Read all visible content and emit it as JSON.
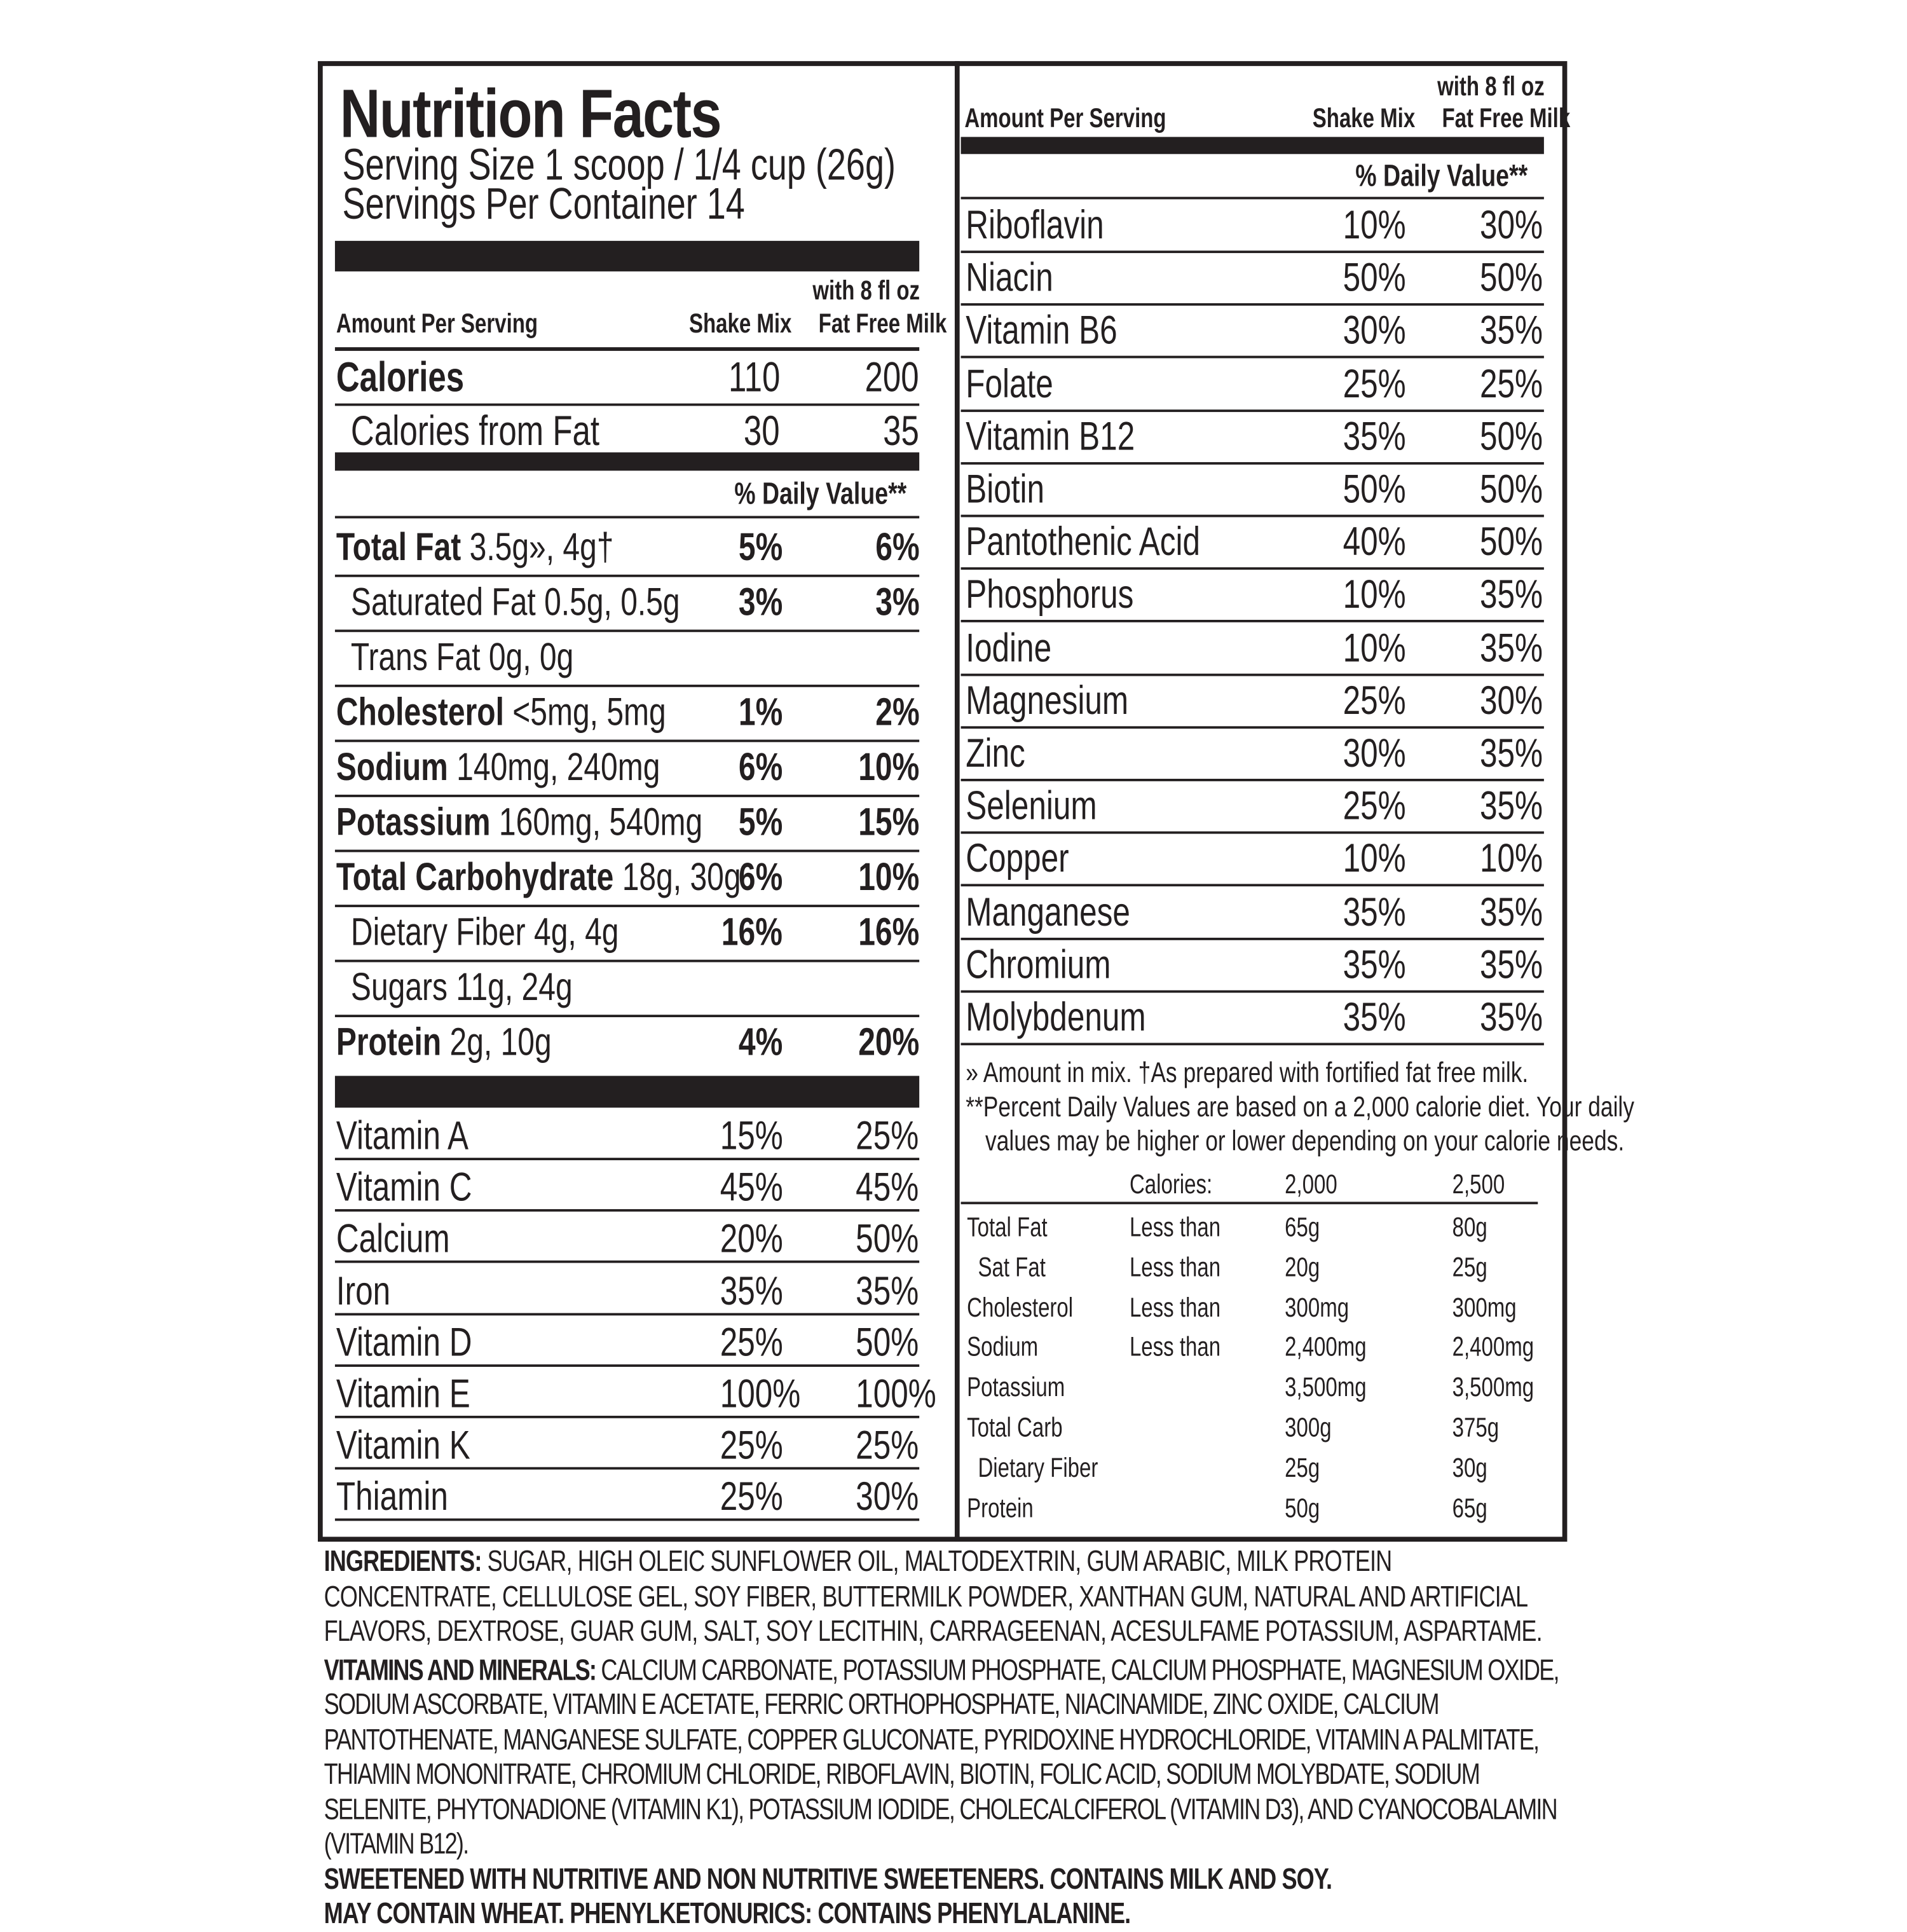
{
  "title": "Nutrition Facts",
  "serving_size": "Serving Size 1 scoop / 1/4 cup (26g)",
  "servings_per_container": "Servings Per Container 14",
  "columns": {
    "amount_per_serving": "Amount Per Serving",
    "shake_mix": "Shake Mix",
    "milk_line1": "with 8 fl oz",
    "milk_line2": "Fat Free Milk"
  },
  "calories": {
    "label": "Calories",
    "mix": "110",
    "milk": "200"
  },
  "calories_from_fat": {
    "label": "Calories from Fat",
    "mix": "30",
    "milk": "35"
  },
  "daily_value_header": "% Daily Value**",
  "nutrients": [
    {
      "name": "Total Fat",
      "detail": "3.5g», 4g†",
      "bold": true,
      "indent": false,
      "mix": "5%",
      "milk": "6%"
    },
    {
      "name": "Saturated Fat",
      "detail": "0.5g, 0.5g",
      "bold": false,
      "indent": true,
      "mix": "3%",
      "milk": "3%"
    },
    {
      "name": "Trans Fat",
      "detail": "0g, 0g",
      "bold": false,
      "indent": true,
      "mix": "",
      "milk": ""
    },
    {
      "name": "Cholesterol",
      "detail": "<5mg, 5mg",
      "bold": true,
      "indent": false,
      "mix": "1%",
      "milk": "2%"
    },
    {
      "name": "Sodium",
      "detail": "140mg, 240mg",
      "bold": true,
      "indent": false,
      "mix": "6%",
      "milk": "10%"
    },
    {
      "name": "Potassium",
      "detail": "160mg, 540mg",
      "bold": true,
      "indent": false,
      "mix": "5%",
      "milk": "15%"
    },
    {
      "name": "Total Carbohydrate",
      "detail": "18g, 30g",
      "bold": true,
      "indent": false,
      "mix": "6%",
      "milk": "10%"
    },
    {
      "name": "Dietary Fiber",
      "detail": "4g, 4g",
      "bold": false,
      "indent": true,
      "mix": "16%",
      "milk": "16%"
    },
    {
      "name": "Sugars",
      "detail": "11g, 24g",
      "bold": false,
      "indent": true,
      "mix": "",
      "milk": ""
    },
    {
      "name": "Protein",
      "detail": "2g, 10g",
      "bold": true,
      "indent": false,
      "mix": "4%",
      "milk": "20%"
    }
  ],
  "vitamins_left": [
    {
      "name": "Vitamin A",
      "mix": "15%",
      "milk": "25%"
    },
    {
      "name": "Vitamin C",
      "mix": "45%",
      "milk": "45%"
    },
    {
      "name": "Calcium",
      "mix": "20%",
      "milk": "50%"
    },
    {
      "name": "Iron",
      "mix": "35%",
      "milk": "35%"
    },
    {
      "name": "Vitamin D",
      "mix": "25%",
      "milk": "50%"
    },
    {
      "name": "Vitamin E",
      "mix": "100%",
      "milk": "100%"
    },
    {
      "name": "Vitamin K",
      "mix": "25%",
      "milk": "25%"
    },
    {
      "name": "Thiamin",
      "mix": "25%",
      "milk": "30%"
    }
  ],
  "vitamins_right": [
    {
      "name": "Riboflavin",
      "mix": "10%",
      "milk": "30%"
    },
    {
      "name": "Niacin",
      "mix": "50%",
      "milk": "50%"
    },
    {
      "name": "Vitamin B6",
      "mix": "30%",
      "milk": "35%"
    },
    {
      "name": "Folate",
      "mix": "25%",
      "milk": "25%"
    },
    {
      "name": "Vitamin B12",
      "mix": "35%",
      "milk": "50%"
    },
    {
      "name": "Biotin",
      "mix": "50%",
      "milk": "50%"
    },
    {
      "name": "Pantothenic Acid",
      "mix": "40%",
      "milk": "50%"
    },
    {
      "name": "Phosphorus",
      "mix": "10%",
      "milk": "35%"
    },
    {
      "name": "Iodine",
      "mix": "10%",
      "milk": "35%"
    },
    {
      "name": "Magnesium",
      "mix": "25%",
      "milk": "30%"
    },
    {
      "name": "Zinc",
      "mix": "30%",
      "milk": "35%"
    },
    {
      "name": "Selenium",
      "mix": "25%",
      "milk": "35%"
    },
    {
      "name": "Copper",
      "mix": "10%",
      "milk": "10%"
    },
    {
      "name": "Manganese",
      "mix": "35%",
      "milk": "35%"
    },
    {
      "name": "Chromium",
      "mix": "35%",
      "milk": "35%"
    },
    {
      "name": "Molybdenum",
      "mix": "35%",
      "milk": "35%"
    }
  ],
  "footnotes": {
    "amount_in_mix": "» Amount in mix. †As prepared with fortified fat free milk.",
    "pdv_line1": "**Percent Daily Values are based on a 2,000 calorie diet. Your daily",
    "pdv_line2": "values may be higher or lower depending on your calorie needs."
  },
  "dv_table": {
    "header": {
      "label": "Calories:",
      "c2000": "2,000",
      "c2500": "2,500"
    },
    "rows": [
      {
        "name": "Total Fat",
        "qual": "Less than",
        "c2000": "65g",
        "c2500": "80g",
        "indent": false
      },
      {
        "name": "Sat Fat",
        "qual": "Less than",
        "c2000": "20g",
        "c2500": "25g",
        "indent": true
      },
      {
        "name": "Cholesterol",
        "qual": "Less than",
        "c2000": "300mg",
        "c2500": "300mg",
        "indent": false
      },
      {
        "name": "Sodium",
        "qual": "Less than",
        "c2000": "2,400mg",
        "c2500": "2,400mg",
        "indent": false
      },
      {
        "name": "Potassium",
        "qual": "",
        "c2000": "3,500mg",
        "c2500": "3,500mg",
        "indent": false
      },
      {
        "name": "Total Carb",
        "qual": "",
        "c2000": "300g",
        "c2500": "375g",
        "indent": false
      },
      {
        "name": "Dietary Fiber",
        "qual": "",
        "c2000": "25g",
        "c2500": "30g",
        "indent": true
      },
      {
        "name": "Protein",
        "qual": "",
        "c2000": "50g",
        "c2500": "65g",
        "indent": false
      }
    ]
  },
  "ingredients": {
    "label": "INGREDIENTS:",
    "text": " SUGAR, HIGH OLEIC SUNFLOWER OIL, MALTODEXTRIN, GUM ARABIC, MILK PROTEIN CONCENTRATE, CELLULOSE GEL, SOY FIBER, BUTTERMILK POWDER, XANTHAN GUM, NATURAL AND ARTIFICIAL FLAVORS, DEXTROSE, GUAR GUM, SALT, SOY LECITHIN, CARRAGEENAN, ACESULFAME POTASSIUM, ASPARTAME."
  },
  "vitamins_minerals": {
    "label": "VITAMINS AND MINERALS:",
    "text": " CALCIUM CARBONATE, POTASSIUM PHOSPHATE, CALCIUM PHOSPHATE, MAGNESIUM OXIDE, SODIUM ASCORBATE, VITAMIN E ACETATE, FERRIC ORTHOPHOSPHATE, NIACINAMIDE, ZINC OXIDE, CALCIUM PANTOTHENATE, MANGANESE SULFATE, COPPER GLUCONATE, PYRIDOXINE HYDROCHLORIDE,  VITAMIN A PALMITATE, THIAMIN MONONITRATE, CHROMIUM CHLORIDE, RIBOFLAVIN, BIOTIN, FOLIC ACID, SODIUM MOLYBDATE, SODIUM SELENITE, PHYTONADIONE (VITAMIN K1), POTASSIUM IODIDE, CHOLECALCIFEROL (VITAMIN D3), AND CYANOCOBALAMIN (VITAMIN B12)."
  },
  "warnings": [
    "SWEETENED WITH NUTRITIVE AND NON NUTRITIVE SWEETENERS.  CONTAINS MILK AND SOY.",
    "MAY CONTAIN WHEAT. PHENYLKETONURICS: CONTAINS PHENYLALANINE."
  ],
  "colors": {
    "ink": "#231f20",
    "background": "#ffffff"
  }
}
